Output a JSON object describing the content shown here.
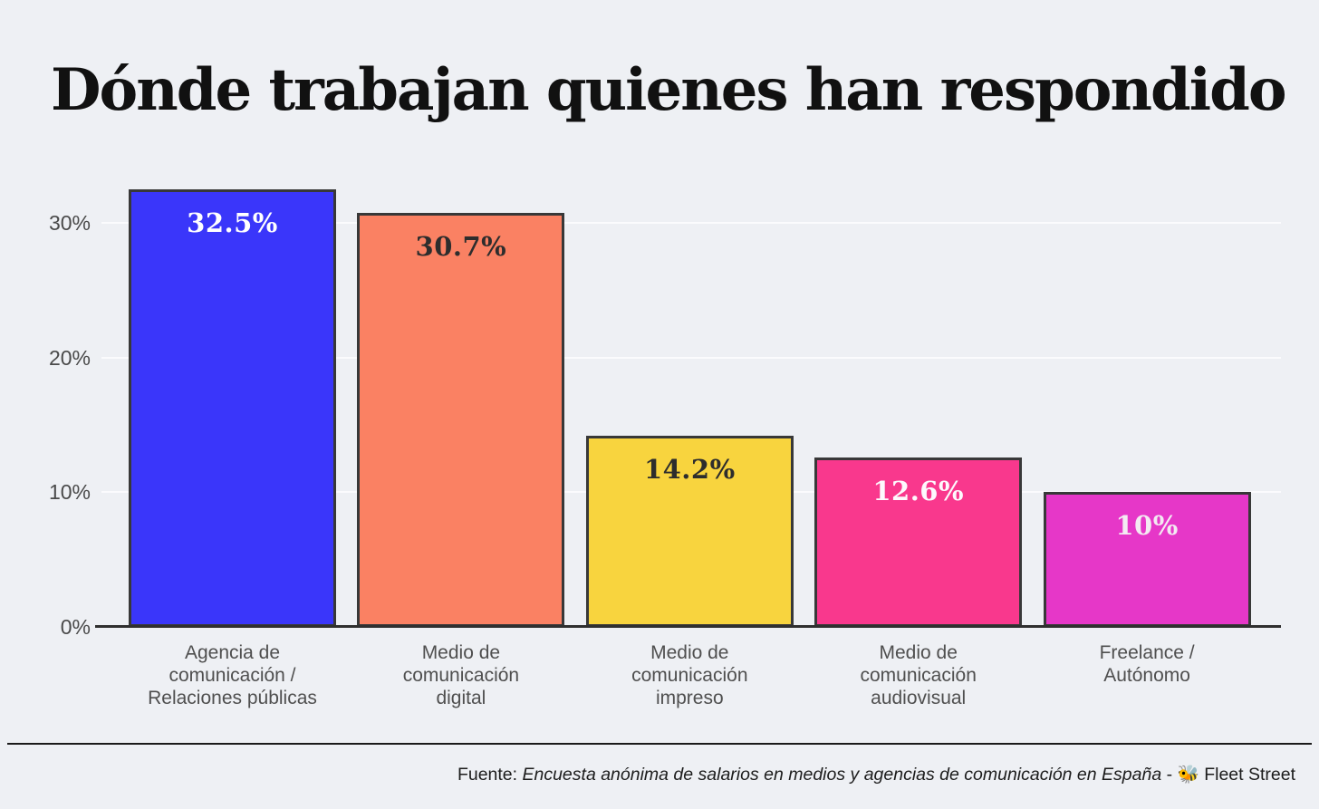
{
  "title": "Dónde trabajan quienes han respondido",
  "chart_data": {
    "type": "bar",
    "title": "Dónde trabajan quienes han respondido",
    "categories": [
      "Agencia de comunicación / Relaciones públicas",
      "Medio de comunicación digital",
      "Medio de comunicación impreso",
      "Medio de comunicación audiovisual",
      "Freelance / Autónomo"
    ],
    "category_lines": [
      [
        "Agencia de",
        "comunicación /",
        "Relaciones públicas"
      ],
      [
        "Medio de",
        "comunicación",
        "digital"
      ],
      [
        "Medio de",
        "comunicación",
        "impreso"
      ],
      [
        "Medio de",
        "comunicación",
        "audiovisual"
      ],
      [
        "Freelance /",
        "Autónomo"
      ]
    ],
    "values": [
      32.5,
      30.7,
      14.2,
      12.6,
      10
    ],
    "value_labels": [
      "32.5%",
      "30.7%",
      "14.2%",
      "12.6%",
      "10%"
    ],
    "bar_colors": [
      "#3A36FA",
      "#FA8163",
      "#F8D43E",
      "#F9388D",
      "#E637C8"
    ],
    "value_label_colors": [
      "#FFFFFF",
      "#2D2D2D",
      "#2D2D2D",
      "#FDF9FD",
      "#F3EAF2"
    ],
    "bar_border_color": "#383838",
    "xlabel": "",
    "ylabel": "",
    "ylim": [
      0,
      33
    ],
    "ytick_values": [
      0,
      10,
      20,
      30
    ],
    "ytick_labels": [
      "0%",
      "10%",
      "20%",
      "30%"
    ],
    "grid": true,
    "legend": false
  },
  "footer": {
    "prefix": "Fuente: ",
    "source_italic": "Encuesta anónima de salarios en medios y agencias de comunicación en España",
    "suffix": " - 🐝 Fleet Street"
  }
}
